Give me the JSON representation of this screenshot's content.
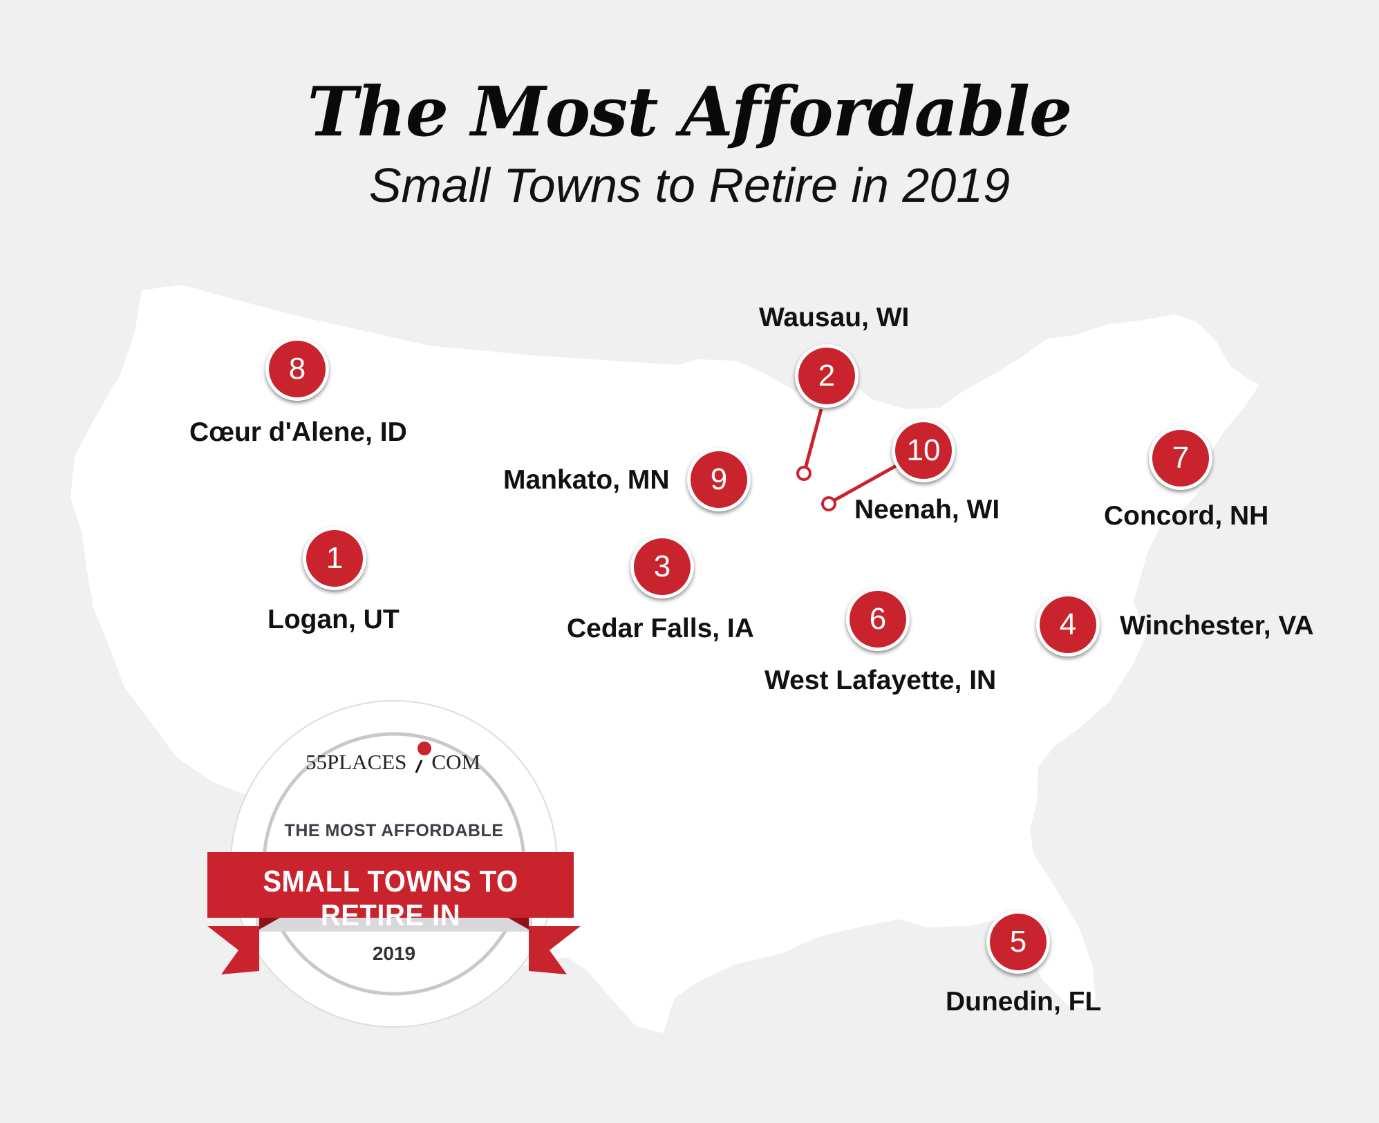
{
  "title": "The Most Affordable",
  "subtitle": "Small Towns to Retire in 2019",
  "colors": {
    "marker": "#c9242e",
    "background": "#f0f0f0",
    "land": "#ffffff"
  },
  "towns": [
    {
      "rank": "1",
      "city": "Logan, UT"
    },
    {
      "rank": "2",
      "city": "Wausau, WI"
    },
    {
      "rank": "3",
      "city": "Cedar Falls, IA"
    },
    {
      "rank": "4",
      "city": "Winchester, VA"
    },
    {
      "rank": "5",
      "city": "Dunedin, FL"
    },
    {
      "rank": "6",
      "city": "West Lafayette, IN"
    },
    {
      "rank": "7",
      "city": "Concord, NH"
    },
    {
      "rank": "8",
      "city": "Cœur d'Alene, ID"
    },
    {
      "rank": "9",
      "city": "Mankato, MN"
    },
    {
      "rank": "10",
      "city": "Neenah, WI"
    }
  ],
  "badge": {
    "logo_left": "55PLACES",
    "logo_right": "COM",
    "top_text": "THE MOST AFFORDABLE",
    "banner_text": "SMALL TOWNS TO RETIRE IN",
    "year": "2019"
  }
}
